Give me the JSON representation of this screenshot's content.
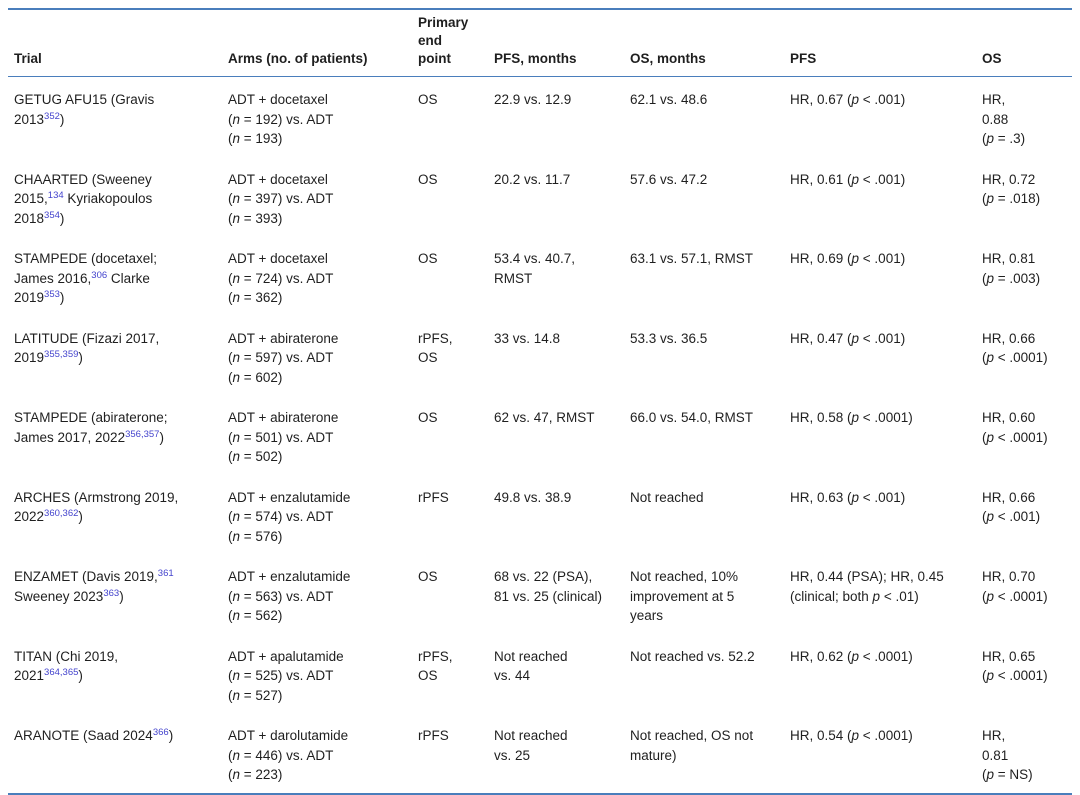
{
  "document": {
    "type": "clinical-trials-summary-table",
    "description": "Table of randomized trials of ADT combinations in prostate cancer"
  },
  "colors": {
    "rule_blue": "#4a7ebc",
    "citation_blue": "#4444cd",
    "text": "#1f1f1f",
    "background": "#ffffff"
  },
  "table": {
    "columns": [
      {
        "key": "trial",
        "label": "Trial"
      },
      {
        "key": "arms",
        "label": "Arms (no. of patients)"
      },
      {
        "key": "primary_end_point",
        "label": "Primary\nend\npoint"
      },
      {
        "key": "pfs_months",
        "label": "PFS, months"
      },
      {
        "key": "os_months",
        "label": "OS, months"
      },
      {
        "key": "pfs_hr",
        "label": "PFS"
      },
      {
        "key": "os_hr",
        "label": "OS"
      }
    ],
    "rows": [
      {
        "cells": [
          "GETUG AFU15 (Gravis\n2013^{352})",
          "ADT + docetaxel\n(*n* = 192) vs. ADT\n(*n* = 193)",
          "OS",
          "22.9 vs. 12.9",
          "62.1 vs. 48.6",
          "HR, 0.67 (*p* < .001)",
          "HR,\n0.88\n(*p* = .3)"
        ]
      },
      {
        "cells": [
          "CHAARTED (Sweeney\n2015,^{134} Kyriakopoulos\n2018^{354})",
          "ADT + docetaxel\n(*n* = 397) vs. ADT\n(*n* = 393)",
          "OS",
          "20.2 vs. 11.7",
          "57.6 vs. 47.2",
          "HR, 0.61 (*p* < .001)",
          "HR, 0.72\n(*p* = .018)"
        ]
      },
      {
        "cells": [
          "STAMPEDE (docetaxel;\nJames 2016,^{306} Clarke\n2019^{353})",
          "ADT + docetaxel\n(*n* = 724) vs. ADT\n(*n* = 362)",
          "OS",
          "53.4 vs. 40.7,\nRMST",
          "63.1 vs. 57.1, RMST",
          "HR, 0.69 (*p* < .001)",
          "HR, 0.81\n(*p* = .003)"
        ]
      },
      {
        "cells": [
          "LATITUDE (Fizazi 2017,\n2019^{355,359})",
          "ADT + abiraterone\n(*n* = 597) vs. ADT\n(*n* = 602)",
          "rPFS, OS",
          "33 vs. 14.8",
          "53.3 vs. 36.5",
          "HR, 0.47 (*p* < .001)",
          "HR, 0.66\n(*p* < .0001)"
        ]
      },
      {
        "cells": [
          "STAMPEDE (abiraterone;\nJames 2017, 2022^{356,357})",
          "ADT + abiraterone\n(*n* = 501) vs. ADT\n(*n* = 502)",
          "OS",
          "62 vs. 47, RMST",
          "66.0 vs. 54.0, RMST",
          "HR, 0.58 (*p* < .0001)",
          "HR, 0.60\n(*p* < .0001)"
        ]
      },
      {
        "cells": [
          "ARCHES (Armstrong 2019,\n2022^{360,362})",
          "ADT + enzalutamide\n(*n* = 574) vs. ADT\n(*n* = 576)",
          "rPFS",
          "49.8 vs. 38.9",
          "Not reached",
          "HR, 0.63 (*p* < .001)",
          "HR, 0.66\n(*p* < .001)"
        ]
      },
      {
        "cells": [
          "ENZAMET (Davis 2019,^{361}\nSweeney 2023^{363})",
          "ADT + enzalutamide\n(*n* = 563) vs. ADT\n(*n* = 562)",
          "OS",
          "68 vs. 22 (PSA),\n81 vs. 25 (clinical)",
          "Not reached, 10%\nimprovement at 5\nyears",
          "HR, 0.44 (PSA); HR, 0.45\n(clinical; both *p* < .01)",
          "HR, 0.70\n(*p* < .0001)"
        ]
      },
      {
        "cells": [
          "TITAN (Chi 2019,\n2021^{364,365})",
          "ADT + apalutamide\n(*n* = 525) vs. ADT\n(*n* = 527)",
          "rPFS, OS",
          "Not reached\nvs. 44",
          "Not reached vs. 52.2",
          "HR, 0.62 (*p* < .0001)",
          "HR, 0.65\n(*p* < .0001)"
        ]
      },
      {
        "cells": [
          "ARANOTE (Saad 2024^{366})",
          "ADT + darolutamide\n(*n* = 446) vs. ADT\n(*n* = 223)",
          "rPFS",
          "Not reached\nvs. 25",
          "Not reached, OS not\nmature)",
          "HR, 0.54 (*p* < .0001)",
          "HR,\n0.81\n(*p* = NS)"
        ]
      }
    ]
  }
}
